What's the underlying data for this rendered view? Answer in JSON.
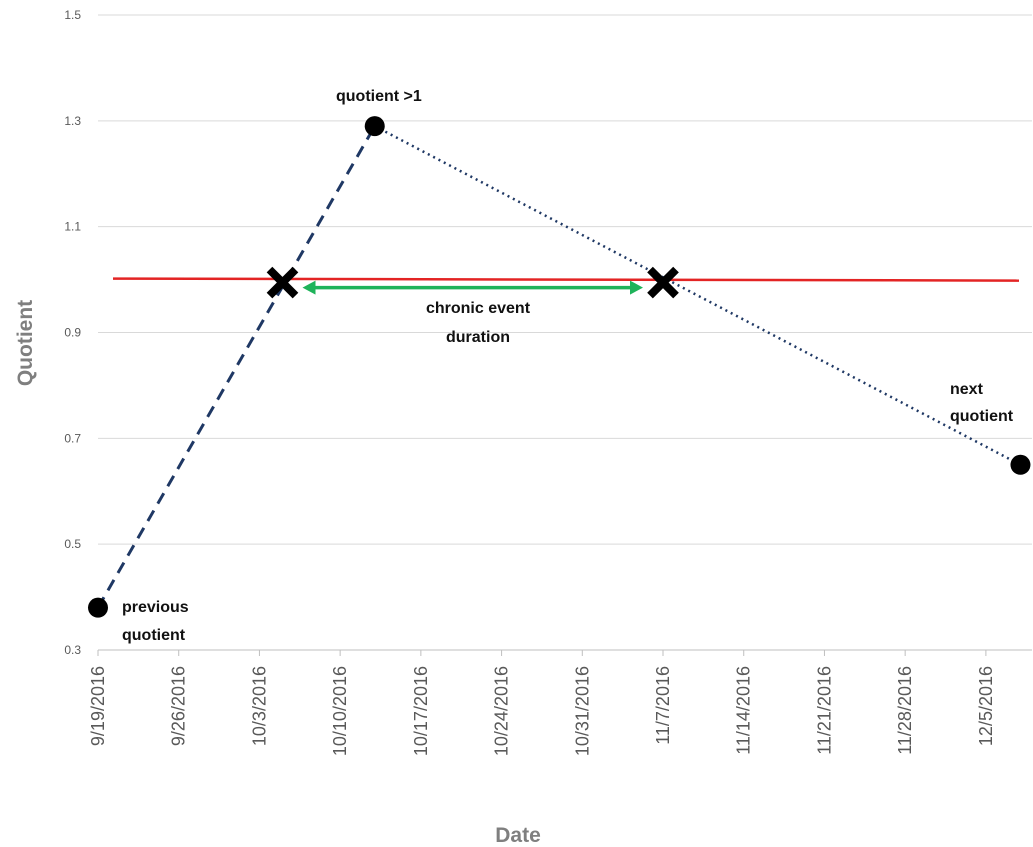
{
  "chart_data": {
    "type": "line",
    "xlabel": "Date",
    "ylabel": "Quotient",
    "ylim": [
      0.3,
      1.5
    ],
    "y_ticks": [
      "0.3",
      "0.5",
      "0.7",
      "0.9",
      "1.1",
      "1.3",
      "1.5"
    ],
    "y_tick_values": [
      0.3,
      0.5,
      0.7,
      0.9,
      1.1,
      1.3,
      1.5
    ],
    "x_ticks": [
      "9/19/2016",
      "9/26/2016",
      "10/3/2016",
      "10/10/2016",
      "10/17/2016",
      "10/24/2016",
      "10/31/2016",
      "11/7/2016",
      "11/14/2016",
      "11/21/2016",
      "11/28/2016",
      "12/5/2016"
    ],
    "xlim": [
      "2016-09-19",
      "2016-12-09"
    ],
    "grid": "horizontal",
    "points": [
      {
        "x": "2016-09-19",
        "y": 0.38
      },
      {
        "x": "2016-10-13",
        "y": 1.29
      },
      {
        "x": "2016-12-08",
        "y": 0.65
      }
    ],
    "crossings": [
      {
        "x": "2016-10-05",
        "y": 1.0
      },
      {
        "x": "2016-11-07",
        "y": 1.0
      }
    ],
    "threshold": 1.0,
    "annotations": {
      "peak": "quotient >1",
      "duration_line1": "chronic event",
      "duration_line2": "duration",
      "previous_line1": "previous",
      "previous_line2": "quotient",
      "next_line1": "next",
      "next_line2": "quotient"
    },
    "colors": {
      "dashed_segment": "#1f3864",
      "dotted_segment": "#1f3864",
      "threshold": "#e32424",
      "duration_arrow": "#1fb35a",
      "markers": "#000000",
      "grid": "#d9d9d9",
      "axis_text": "#595959"
    }
  }
}
